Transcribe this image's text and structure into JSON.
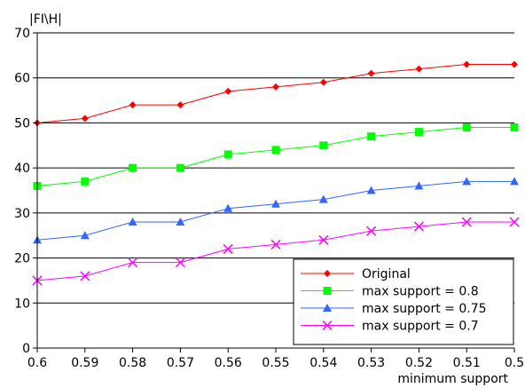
{
  "chart_data": {
    "type": "line",
    "title": "",
    "ylabel": "|FI\\H|",
    "xlabel": "minimum support",
    "ylim": [
      0,
      70
    ],
    "yticks": [
      0,
      10,
      20,
      30,
      40,
      50,
      60,
      70
    ],
    "categories": [
      "0.6",
      "0.59",
      "0.58",
      "0.57",
      "0.56",
      "0.55",
      "0.54",
      "0.53",
      "0.52",
      "0.51",
      "0.5"
    ],
    "grid": "horizontal",
    "legend_position": "bottom-right",
    "series": [
      {
        "name": "Original",
        "color": "#ff0000",
        "marker": "diamond",
        "values": [
          50,
          51,
          54,
          54,
          57,
          58,
          59,
          61,
          62,
          63,
          63
        ]
      },
      {
        "name": "max support = 0.8",
        "color": "#00ff00",
        "marker": "square",
        "values": [
          36,
          37,
          40,
          40,
          43,
          44,
          45,
          47,
          48,
          49,
          49
        ]
      },
      {
        "name": "max support = 0.75",
        "color": "#3366ff",
        "marker": "triangle",
        "values": [
          24,
          25,
          28,
          28,
          31,
          32,
          33,
          35,
          36,
          37,
          37
        ]
      },
      {
        "name": "max support = 0.7",
        "color": "#ff00ff",
        "marker": "cross",
        "values": [
          15,
          16,
          19,
          19,
          22,
          23,
          24,
          26,
          27,
          28,
          28
        ]
      }
    ]
  }
}
